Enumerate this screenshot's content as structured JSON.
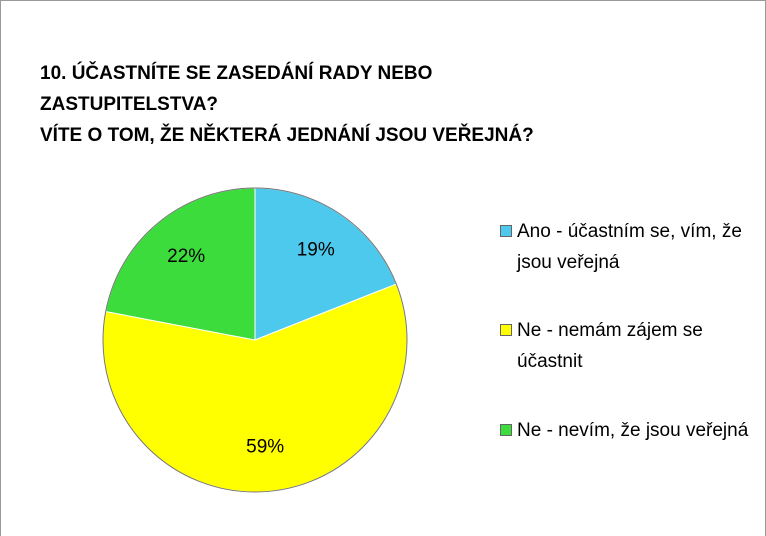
{
  "chart_data": {
    "type": "pie",
    "title": [
      "10. ÚČASTNÍTE SE ZASEDÁNÍ RADY NEBO",
      "ZASTUPITELSTVA?",
      "VÍTE O TOM, ŽE NĚKTERÁ JEDNÁNÍ JSOU VEŘEJNÁ?"
    ],
    "categories": [
      "Ano - účastním se, vím, že jsou veřejná",
      "Ne - nemám zájem se účastnit",
      "Ne - nevím, že jsou veřejná"
    ],
    "values": [
      19,
      59,
      22
    ],
    "value_labels": [
      "19%",
      "59%",
      "22%"
    ],
    "colors": [
      "#4cc9ec",
      "#ffff00",
      "#3ddc3d"
    ],
    "legend": "right"
  }
}
